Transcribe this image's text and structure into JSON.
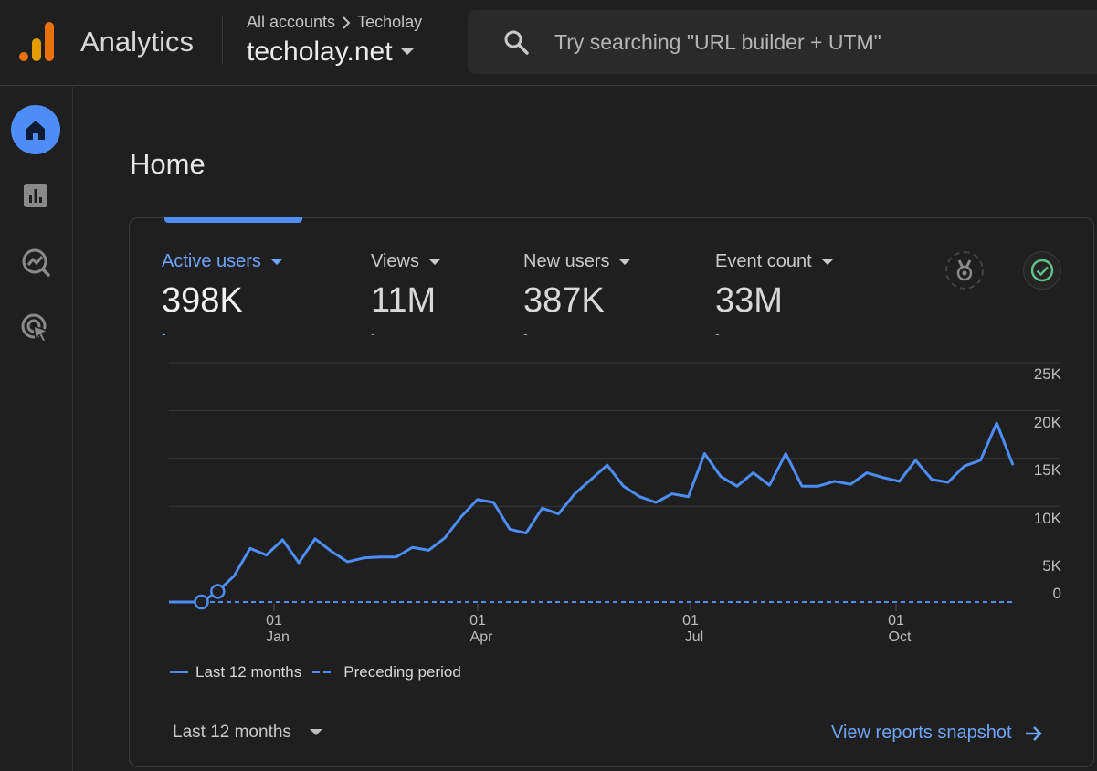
{
  "header": {
    "app_name": "Analytics",
    "breadcrumb_account": "All accounts",
    "breadcrumb_sep": ">",
    "breadcrumb_property": "Techolay",
    "property_name": "techolay.net",
    "search_placeholder": "Try searching \"URL builder + UTM\""
  },
  "nav": {
    "items": [
      {
        "icon": "home-icon",
        "active": true
      },
      {
        "icon": "reports-icon",
        "active": false
      },
      {
        "icon": "explore-icon",
        "active": false
      },
      {
        "icon": "advertising-icon",
        "active": false
      }
    ]
  },
  "page": {
    "title": "Home"
  },
  "metrics": [
    {
      "label": "Active users",
      "value": "398K",
      "delta": "-",
      "active": true
    },
    {
      "label": "Views",
      "value": "11M",
      "delta": "-",
      "active": false
    },
    {
      "label": "New users",
      "value": "387K",
      "delta": "-",
      "active": false
    },
    {
      "label": "Event count",
      "value": "33M",
      "delta": "-",
      "active": false
    }
  ],
  "chart_data": {
    "type": "line",
    "y_ticks": [
      "25K",
      "20K",
      "15K",
      "10K",
      "5K",
      "0"
    ],
    "ylim": [
      0,
      25000
    ],
    "x_ticks": [
      {
        "day": "01",
        "month": "Jan"
      },
      {
        "day": "01",
        "month": "Apr"
      },
      {
        "day": "01",
        "month": "Jul"
      },
      {
        "day": "01",
        "month": "Oct"
      }
    ],
    "series": [
      {
        "name": "Last 12 months",
        "style": "solid",
        "color": "#4c8df6",
        "values": [
          0,
          0,
          0,
          1100,
          2700,
          5600,
          4900,
          6500,
          4100,
          6600,
          5300,
          4200,
          4600,
          4700,
          4700,
          5700,
          5400,
          6700,
          8900,
          10700,
          10400,
          7600,
          7200,
          9800,
          9200,
          11300,
          12800,
          14300,
          12100,
          11000,
          10400,
          11300,
          11000,
          15500,
          13100,
          12100,
          13500,
          12200,
          15500,
          12100,
          12100,
          12600,
          12300,
          13500,
          13000,
          12600,
          14800,
          12800,
          12500,
          14200,
          14800,
          18700,
          14300
        ]
      },
      {
        "name": "Preceding period",
        "style": "dashed",
        "color": "#4c8df6",
        "values": [
          0,
          0,
          0,
          0,
          0,
          0,
          0,
          0,
          0,
          0,
          0,
          0,
          0,
          0,
          0,
          0,
          0,
          0,
          0,
          0,
          0,
          0,
          0,
          0,
          0,
          0,
          0,
          0,
          0,
          0,
          0,
          0,
          0,
          0,
          0,
          0,
          0,
          0,
          0,
          0,
          0,
          0,
          0,
          0,
          0,
          0,
          0,
          0,
          0,
          0,
          0,
          0,
          0
        ]
      }
    ]
  },
  "footer": {
    "range_label": "Last 12 months",
    "snapshot_link": "View reports snapshot"
  },
  "colors": {
    "accent": "#4c8df6",
    "success": "#5ec28a"
  }
}
